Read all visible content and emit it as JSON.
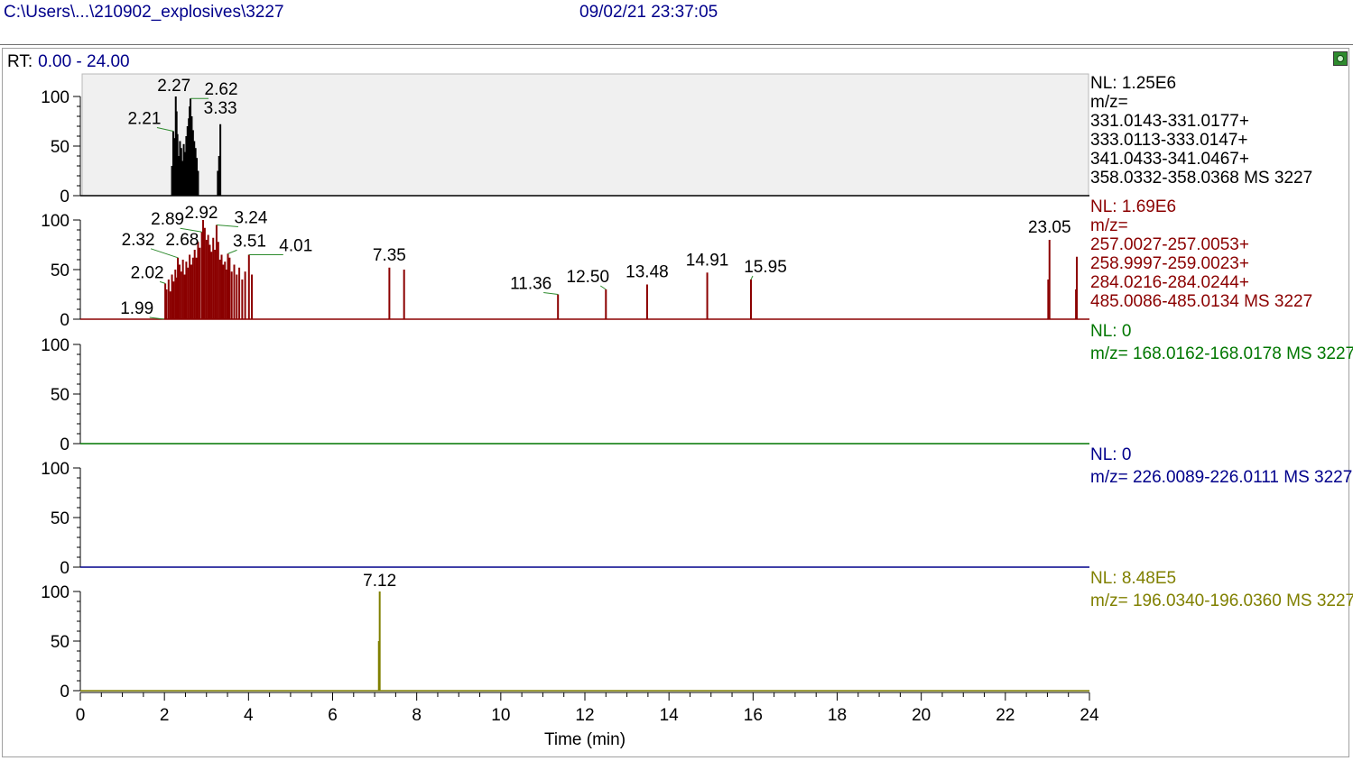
{
  "header": {
    "path": "C:\\Users\\...\\210902_explosives\\3227",
    "datetime": "09/02/21 23:37:05"
  },
  "rt": {
    "label": "RT:",
    "range": "0.00 - 24.00"
  },
  "colors": {
    "panel1": "#000000",
    "panel2": "#8b0000",
    "panel3": "#007700",
    "panel4": "#00008b",
    "panel5": "#808000",
    "label_leader": "#2e8b2e",
    "panel1_bg": "#f0f0f0"
  },
  "chart_data": [
    {
      "type": "line",
      "xlim": [
        0,
        24
      ],
      "ylim": [
        0,
        100
      ],
      "yticks": [
        0,
        50,
        100
      ],
      "info_lines": [
        "NL: 1.25E6",
        "m/z=",
        "331.0143-331.0177+",
        "333.0113-333.0147+",
        "341.0433-341.0467+",
        "358.0332-358.0368  MS 3227"
      ],
      "peaks": [
        {
          "x": 2.21,
          "y": 65,
          "label": "2.21"
        },
        {
          "x": 2.27,
          "y": 100,
          "label": "2.27"
        },
        {
          "x": 2.62,
          "y": 98,
          "label": "2.62"
        },
        {
          "x": 3.33,
          "y": 72,
          "label": "3.33"
        }
      ],
      "background_sticks": [
        [
          2.18,
          30
        ],
        [
          2.22,
          45
        ],
        [
          2.25,
          58
        ],
        [
          2.29,
          85
        ],
        [
          2.31,
          62
        ],
        [
          2.34,
          40
        ],
        [
          2.37,
          55
        ],
        [
          2.4,
          48
        ],
        [
          2.43,
          35
        ],
        [
          2.46,
          52
        ],
        [
          2.49,
          44
        ],
        [
          2.52,
          60
        ],
        [
          2.55,
          70
        ],
        [
          2.58,
          78
        ],
        [
          2.6,
          90
        ],
        [
          2.65,
          80
        ],
        [
          2.68,
          66
        ],
        [
          2.71,
          55
        ],
        [
          2.74,
          48
        ],
        [
          2.77,
          38
        ],
        [
          2.8,
          25
        ],
        [
          3.27,
          25
        ],
        [
          3.3,
          40
        ]
      ]
    },
    {
      "type": "line",
      "xlim": [
        0,
        24
      ],
      "ylim": [
        0,
        100
      ],
      "yticks": [
        0,
        50,
        100
      ],
      "info_lines": [
        "NL: 1.69E6",
        "m/z=",
        "257.0027-257.0053+",
        "258.9997-259.0023+",
        "284.0216-284.0244+",
        "485.0086-485.0134  MS 3227"
      ],
      "peaks": [
        {
          "x": 1.99,
          "y": 0,
          "label": "1.99"
        },
        {
          "x": 2.02,
          "y": 36,
          "label": "2.02"
        },
        {
          "x": 2.32,
          "y": 62,
          "label": "2.32"
        },
        {
          "x": 2.68,
          "y": 62,
          "label": "2.68"
        },
        {
          "x": 2.89,
          "y": 88,
          "label": "2.89"
        },
        {
          "x": 2.92,
          "y": 100,
          "label": "2.92"
        },
        {
          "x": 3.24,
          "y": 95,
          "label": "3.24"
        },
        {
          "x": 3.51,
          "y": 66,
          "label": "3.51"
        },
        {
          "x": 4.01,
          "y": 65,
          "label": "4.01"
        },
        {
          "x": 7.35,
          "y": 52,
          "label": "7.35"
        },
        {
          "x": 11.36,
          "y": 25,
          "label": "11.36"
        },
        {
          "x": 12.5,
          "y": 30,
          "label": "12.50"
        },
        {
          "x": 13.48,
          "y": 35,
          "label": "13.48"
        },
        {
          "x": 14.91,
          "y": 47,
          "label": "14.91"
        },
        {
          "x": 15.95,
          "y": 40,
          "label": "15.95"
        },
        {
          "x": 23.05,
          "y": 80,
          "label": "23.05"
        }
      ],
      "background_sticks": [
        [
          2.05,
          30
        ],
        [
          2.1,
          40
        ],
        [
          2.14,
          28
        ],
        [
          2.18,
          45
        ],
        [
          2.22,
          38
        ],
        [
          2.26,
          50
        ],
        [
          2.29,
          42
        ],
        [
          2.36,
          55
        ],
        [
          2.4,
          48
        ],
        [
          2.44,
          60
        ],
        [
          2.48,
          45
        ],
        [
          2.52,
          58
        ],
        [
          2.56,
          52
        ],
        [
          2.6,
          65
        ],
        [
          2.64,
          55
        ],
        [
          2.72,
          70
        ],
        [
          2.76,
          62
        ],
        [
          2.8,
          78
        ],
        [
          2.84,
          72
        ],
        [
          2.96,
          92
        ],
        [
          3.0,
          80
        ],
        [
          3.04,
          85
        ],
        [
          3.08,
          75
        ],
        [
          3.12,
          68
        ],
        [
          3.16,
          82
        ],
        [
          3.2,
          70
        ],
        [
          3.28,
          78
        ],
        [
          3.32,
          60
        ],
        [
          3.36,
          65
        ],
        [
          3.4,
          55
        ],
        [
          3.44,
          58
        ],
        [
          3.48,
          50
        ],
        [
          3.55,
          62
        ],
        [
          3.6,
          48
        ],
        [
          3.66,
          55
        ],
        [
          3.72,
          45
        ],
        [
          3.78,
          52
        ],
        [
          3.85,
          40
        ],
        [
          3.92,
          48
        ],
        [
          4.08,
          45
        ],
        [
          7.7,
          50
        ],
        [
          23.7,
          63
        ],
        [
          23.02,
          40
        ],
        [
          23.68,
          30
        ]
      ]
    },
    {
      "type": "line",
      "xlim": [
        0,
        24
      ],
      "ylim": [
        0,
        100
      ],
      "yticks": [
        0,
        50,
        100
      ],
      "info_lines": [
        "NL: 0",
        "m/z= 168.0162-168.0178  MS 3227"
      ],
      "peaks": [],
      "background_sticks": []
    },
    {
      "type": "line",
      "xlim": [
        0,
        24
      ],
      "ylim": [
        0,
        100
      ],
      "yticks": [
        0,
        50,
        100
      ],
      "info_lines": [
        "NL: 0",
        "m/z= 226.0089-226.0111  MS 3227"
      ],
      "peaks": [],
      "background_sticks": []
    },
    {
      "type": "line",
      "xlim": [
        0,
        24
      ],
      "ylim": [
        0,
        100
      ],
      "yticks": [
        0,
        50,
        100
      ],
      "info_lines": [
        "NL: 8.48E5",
        "m/z= 196.0340-196.0360  MS 3227"
      ],
      "peaks": [
        {
          "x": 7.12,
          "y": 100,
          "label": "7.12"
        }
      ],
      "background_sticks": [
        [
          7.1,
          50
        ]
      ]
    }
  ],
  "x_axis": {
    "ticks": [
      0,
      2,
      4,
      6,
      8,
      10,
      12,
      14,
      16,
      18,
      20,
      22,
      24
    ],
    "label": "Time (min)"
  }
}
